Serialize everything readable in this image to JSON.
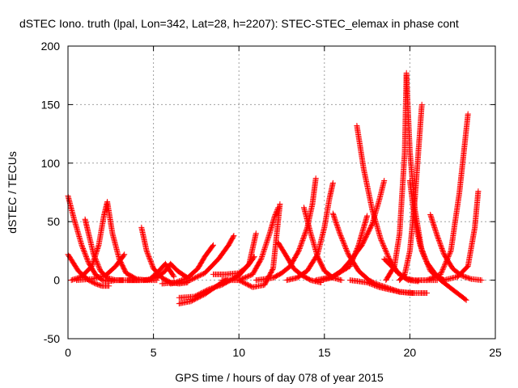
{
  "chart_data": {
    "type": "scatter",
    "title": "dSTEC Iono. truth (lpal, Lon=342, Lat=28, h=2207): STEC-STEC_elemax in phase cont",
    "xlabel": "GPS time / hours of day 078 of year 2015",
    "ylabel": "dSTEC  / TECUs",
    "xlim": [
      0,
      25
    ],
    "ylim": [
      -50,
      200
    ],
    "xticks": [
      0,
      5,
      10,
      15,
      20,
      25
    ],
    "yticks": [
      -50,
      0,
      50,
      100,
      150,
      200
    ],
    "grid": true,
    "marker": "+",
    "color": "#ff0000",
    "series": [
      {
        "x": [
          0.0,
          0.4,
          0.8,
          1.2,
          1.6,
          2.0,
          2.4,
          2.8,
          3.2
        ],
        "y": [
          72,
          50,
          30,
          15,
          5,
          0,
          -1,
          0,
          0
        ]
      },
      {
        "x": [
          0.0,
          0.6,
          1.2,
          1.6,
          2.0,
          2.4
        ],
        "y": [
          22,
          8,
          0,
          -3,
          -5,
          -5
        ]
      },
      {
        "x": [
          1.0,
          1.2,
          1.5,
          1.9,
          2.3,
          2.8,
          3.4,
          4.2
        ],
        "y": [
          52,
          40,
          22,
          8,
          2,
          0,
          0,
          0
        ]
      },
      {
        "x": [
          0.2,
          0.8,
          1.4,
          1.8,
          2.1,
          2.3,
          2.6,
          3.0,
          3.4,
          4.0,
          4.6,
          5.2
        ],
        "y": [
          0,
          3,
          12,
          30,
          55,
          67,
          40,
          18,
          6,
          1,
          0,
          0
        ]
      },
      {
        "x": [
          0.5,
          1.4,
          2.2,
          2.8,
          3.3
        ],
        "y": [
          0,
          1,
          4,
          12,
          22
        ]
      },
      {
        "x": [
          4.3,
          4.6,
          5.0,
          5.5,
          6.0,
          6.5,
          7.0
        ],
        "y": [
          45,
          25,
          10,
          2,
          -2,
          -3,
          -2
        ]
      },
      {
        "x": [
          4.8,
          5.2,
          5.7,
          6.2
        ],
        "y": [
          1,
          6,
          14,
          3
        ]
      },
      {
        "x": [
          3.5,
          4.5,
          5.2,
          5.7,
          6.0,
          6.4,
          7.0
        ],
        "y": [
          0,
          0,
          2,
          8,
          14,
          8,
          2
        ]
      },
      {
        "x": [
          5.5,
          6.3,
          7.0,
          7.6,
          8.0,
          8.5
        ],
        "y": [
          -3,
          -2,
          2,
          10,
          20,
          30
        ]
      },
      {
        "x": [
          6.0,
          7.0,
          8.0,
          8.8,
          9.4,
          9.7
        ],
        "y": [
          -3,
          -1,
          6,
          18,
          30,
          38
        ]
      },
      {
        "x": [
          6.5,
          7.2,
          8.0,
          8.6,
          9.0,
          9.3
        ],
        "y": [
          -20,
          -18,
          -12,
          -6,
          -2,
          0
        ]
      },
      {
        "x": [
          6.5,
          7.4,
          8.2,
          9.0,
          9.5,
          10.0,
          10.6,
          11.0
        ],
        "y": [
          -15,
          -14,
          -8,
          -4,
          0,
          4,
          14,
          40
        ]
      },
      {
        "x": [
          8.5,
          9.2,
          10.0,
          10.5,
          10.9
        ],
        "y": [
          5,
          5,
          6,
          12,
          20
        ]
      },
      {
        "x": [
          9.0,
          10.0,
          10.8,
          11.3,
          11.8,
          12.1,
          12.3
        ],
        "y": [
          0,
          0,
          5,
          18,
          40,
          55,
          62
        ]
      },
      {
        "x": [
          10.0,
          10.8,
          11.5,
          12.0,
          12.4
        ],
        "y": [
          0,
          -6,
          -4,
          10,
          65
        ]
      },
      {
        "x": [
          11.0,
          12.0,
          12.5,
          13.0,
          13.5,
          14.0,
          14.3,
          14.5
        ],
        "y": [
          0,
          2,
          6,
          12,
          25,
          45,
          65,
          87
        ]
      },
      {
        "x": [
          12.3,
          12.8,
          13.2,
          13.7,
          14.2,
          14.8
        ],
        "y": [
          32,
          20,
          10,
          4,
          0,
          -2
        ]
      },
      {
        "x": [
          12.8,
          13.4,
          14.0,
          14.6,
          15.0,
          15.3,
          15.5
        ],
        "y": [
          0,
          2,
          8,
          22,
          45,
          70,
          83
        ]
      },
      {
        "x": [
          13.8,
          14.2,
          14.6,
          15.0,
          15.5,
          16.0
        ],
        "y": [
          62,
          40,
          20,
          8,
          2,
          0
        ]
      },
      {
        "x": [
          14.5,
          15.5,
          16.5,
          17.0,
          17.3,
          17.5
        ],
        "y": [
          0,
          3,
          12,
          30,
          45,
          55
        ]
      },
      {
        "x": [
          14.8,
          15.4,
          16.0,
          16.6,
          17.2,
          17.8,
          18.2,
          18.5
        ],
        "y": [
          0,
          2,
          8,
          18,
          30,
          48,
          68,
          85
        ]
      },
      {
        "x": [
          15.5,
          15.9,
          16.4,
          17.0,
          17.6,
          18.0,
          18.6,
          19.4,
          20.2
        ],
        "y": [
          57,
          40,
          22,
          8,
          0,
          -3,
          -6,
          -10,
          -11
        ]
      },
      {
        "x": [
          16.9,
          17.3,
          17.8,
          18.3,
          18.8,
          19.3,
          19.9,
          20.5
        ],
        "y": [
          132,
          95,
          60,
          35,
          18,
          6,
          0,
          -1
        ]
      },
      {
        "x": [
          16.5,
          17.5,
          18.2,
          18.8,
          19.4,
          20.0,
          20.6,
          21.0
        ],
        "y": [
          0,
          -2,
          -6,
          -8,
          -10,
          -11,
          -11,
          -11
        ]
      },
      {
        "x": [
          18.5,
          19.2,
          19.6,
          19.9,
          20.2,
          20.6,
          21.0,
          21.6
        ],
        "y": [
          18,
          8,
          3,
          1,
          0,
          0,
          0,
          0
        ]
      },
      {
        "x": [
          18.6,
          19.1,
          19.4,
          19.7,
          19.8
        ],
        "y": [
          0,
          12,
          40,
          110,
          177
        ]
      },
      {
        "x": [
          19.8,
          20.0,
          20.3,
          20.7,
          21.2,
          21.8,
          22.5,
          23.3
        ],
        "y": [
          175,
          110,
          60,
          25,
          8,
          0,
          -8,
          -17
        ]
      },
      {
        "x": [
          19.4,
          19.7,
          20.0,
          20.3,
          20.7
        ],
        "y": [
          0,
          5,
          25,
          70,
          150
        ]
      },
      {
        "x": [
          20.0,
          20.3,
          20.6,
          21.0,
          21.5,
          22.0
        ],
        "y": [
          85,
          50,
          30,
          15,
          5,
          0
        ]
      },
      {
        "x": [
          21.2,
          21.6,
          22.0,
          22.5,
          23.0,
          23.6,
          24.2
        ],
        "y": [
          56,
          38,
          22,
          10,
          4,
          1,
          0
        ]
      },
      {
        "x": [
          21.0,
          21.8,
          22.4,
          22.9,
          23.2,
          23.4
        ],
        "y": [
          0,
          5,
          25,
          75,
          115,
          142
        ]
      },
      {
        "x": [
          22.0,
          22.8,
          23.4,
          23.8,
          24.0
        ],
        "y": [
          0,
          3,
          12,
          45,
          76
        ]
      }
    ]
  }
}
